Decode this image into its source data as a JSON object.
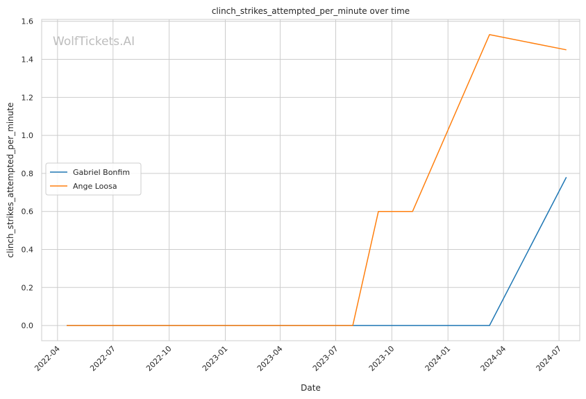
{
  "chart_data": {
    "type": "line",
    "title": "clinch_strikes_attempted_per_minute over time",
    "xlabel": "Date",
    "ylabel": "clinch_strikes_attempted_per_minute",
    "watermark": "WolfTickets.AI",
    "x_ticks": [
      "2022-04",
      "2022-07",
      "2022-10",
      "2023-01",
      "2023-04",
      "2023-07",
      "2023-10",
      "2024-01",
      "2024-04",
      "2024-07"
    ],
    "y_ticks": [
      "0.0",
      "0.2",
      "0.4",
      "0.6",
      "0.8",
      "1.0",
      "1.2",
      "1.4",
      "1.6"
    ],
    "xlim": [
      "2022-03-06",
      "2024-08-04"
    ],
    "ylim": [
      -0.08,
      1.61
    ],
    "grid": true,
    "legend_position": "center-left",
    "series": [
      {
        "name": "Gabriel Bonfim",
        "color": "#1f77b4",
        "points": [
          {
            "x": "2022-04-16",
            "y": 0.0
          },
          {
            "x": "2023-07-29",
            "y": 0.0
          },
          {
            "x": "2024-03-09",
            "y": 0.0
          },
          {
            "x": "2024-07-13",
            "y": 0.78
          }
        ]
      },
      {
        "name": "Ange Loosa",
        "color": "#ff7f0e",
        "points": [
          {
            "x": "2022-04-16",
            "y": 0.0
          },
          {
            "x": "2023-07-29",
            "y": 0.0
          },
          {
            "x": "2023-09-09",
            "y": 0.6
          },
          {
            "x": "2023-11-04",
            "y": 0.6
          },
          {
            "x": "2024-03-09",
            "y": 1.53
          },
          {
            "x": "2024-07-13",
            "y": 1.45
          }
        ]
      }
    ]
  }
}
